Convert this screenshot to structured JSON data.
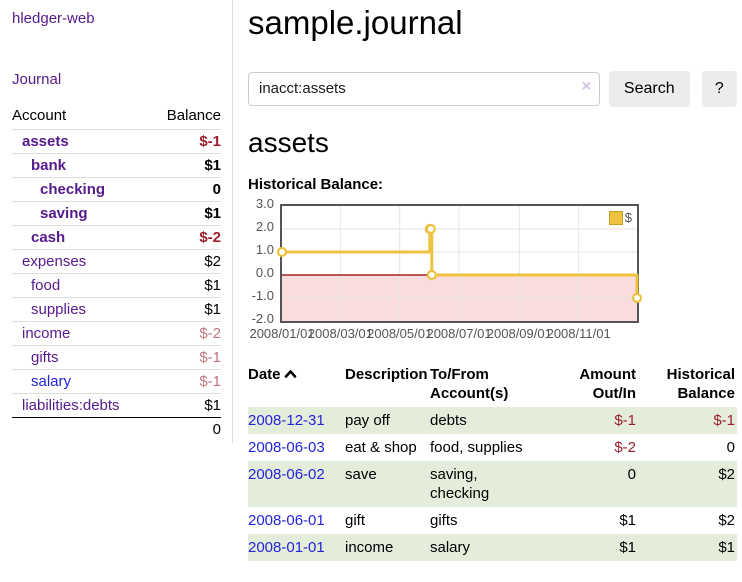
{
  "app": {
    "title": "hledger-web"
  },
  "sidebar": {
    "journal_link": "Journal",
    "accounts_table": {
      "headers": [
        "Account",
        "Balance"
      ],
      "rows": [
        {
          "name": "assets",
          "balance": "$-1",
          "level": 1,
          "in_query": true,
          "link": "visited",
          "tone": "negative"
        },
        {
          "name": "bank",
          "balance": "$1",
          "level": 2,
          "in_query": true,
          "link": "visited",
          "tone": "normal"
        },
        {
          "name": "checking",
          "balance": "0",
          "level": 3,
          "in_query": true,
          "link": "visited",
          "tone": "normal"
        },
        {
          "name": "saving",
          "balance": "$1",
          "level": 3,
          "in_query": true,
          "link": "visited",
          "tone": "normal"
        },
        {
          "name": "cash",
          "balance": "$-2",
          "level": 2,
          "in_query": true,
          "link": "visited",
          "tone": "negative"
        },
        {
          "name": "expenses",
          "balance": "$2",
          "level": 1,
          "in_query": false,
          "link": "visited",
          "tone": "normal"
        },
        {
          "name": "food",
          "balance": "$1",
          "level": 2,
          "in_query": false,
          "link": "visited",
          "tone": "normal"
        },
        {
          "name": "supplies",
          "balance": "$1",
          "level": 2,
          "in_query": false,
          "link": "visited",
          "tone": "normal"
        },
        {
          "name": "income",
          "balance": "$-2",
          "level": 1,
          "in_query": false,
          "link": "visited",
          "tone": "negative-muted"
        },
        {
          "name": "gifts",
          "balance": "$-1",
          "level": 2,
          "in_query": false,
          "link": "visited",
          "tone": "negative-muted"
        },
        {
          "name": "salary",
          "balance": "$-1",
          "level": 2,
          "in_query": false,
          "link": "unvisited",
          "tone": "negative-muted"
        },
        {
          "name": "liabilities:debts",
          "balance": "$1",
          "level": 1,
          "in_query": false,
          "link": "visited",
          "tone": "normal"
        }
      ],
      "total": "0"
    }
  },
  "main": {
    "title": "sample.journal",
    "search": {
      "value": "inacct:assets",
      "clear_icon": "×",
      "button_label": "Search",
      "help_label": "?"
    },
    "account_heading": "assets",
    "register": {
      "headers": [
        "Date",
        "Description",
        "To/From Account(s)",
        "Amount Out/In",
        "Historical Balance"
      ],
      "sort": {
        "column": "Date",
        "direction": "ascending-icon"
      },
      "rows": [
        {
          "date": "2008-12-31",
          "description": "pay off",
          "accounts": "debts",
          "amount": "$-1",
          "amount_tone": "negative",
          "balance": "$-1",
          "balance_tone": "negative"
        },
        {
          "date": "2008-06-03",
          "description": "eat & shop",
          "accounts": "food, supplies",
          "amount": "$-2",
          "amount_tone": "negative",
          "balance": "0",
          "balance_tone": "normal"
        },
        {
          "date": "2008-06-02",
          "description": "save",
          "accounts": "saving, checking",
          "amount": "0",
          "amount_tone": "normal",
          "balance": "$2",
          "balance_tone": "normal"
        },
        {
          "date": "2008-06-01",
          "description": "gift",
          "accounts": "gifts",
          "amount": "$1",
          "amount_tone": "normal",
          "balance": "$2",
          "balance_tone": "normal"
        },
        {
          "date": "2008-01-01",
          "description": "income",
          "accounts": "salary",
          "amount": "$1",
          "amount_tone": "normal",
          "balance": "$1",
          "balance_tone": "normal"
        }
      ]
    }
  },
  "chart_data": {
    "type": "line",
    "title": "Historical Balance:",
    "step": true,
    "x_range": [
      "2008-01-01",
      "2008-12-31"
    ],
    "ylim": [
      -2.0,
      3.0
    ],
    "yticks": [
      "3.0",
      "2.0",
      "1.0",
      "0.0",
      "-1.0",
      "-2.0"
    ],
    "xticks": [
      "2008/01/01",
      "2008/03/01",
      "2008/05/01",
      "2008/07/01",
      "2008/09/01",
      "2008/11/01"
    ],
    "series": [
      {
        "name": "$",
        "points": [
          [
            "2008-01-01",
            1
          ],
          [
            "2008-06-01",
            2
          ],
          [
            "2008-06-02",
            2
          ],
          [
            "2008-06-03",
            0
          ],
          [
            "2008-12-31",
            -1
          ]
        ]
      }
    ],
    "legend": {
      "position": "top-right",
      "label": "$"
    },
    "grid": true,
    "colors": {
      "series": "#edc240",
      "marker_fill": "#ffffff",
      "zero_line": "#8b0000",
      "negative_region": "#fbdcdc",
      "gridline": "#e6e6e6",
      "border": "#545454"
    }
  },
  "colors": {
    "visited_link_purple": "#551a8b",
    "unvisited_link_blue": "#2424dd",
    "negative_amount_red": "#9d1f2d",
    "negative_muted_rose": "#c3747f",
    "row_stripe_green": "#e3edda"
  }
}
